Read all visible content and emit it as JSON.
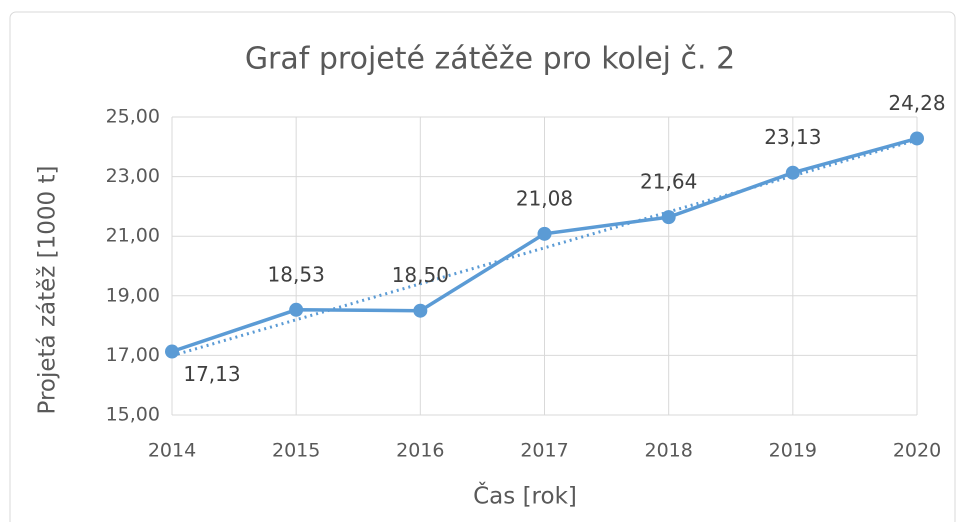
{
  "chart_data": {
    "type": "line",
    "title": "Graf projeté zátěže pro kolej č. 2",
    "x_label": "Čas [rok]",
    "y_label": "Projetá zátěž [1000 t]",
    "categories": [
      "2014",
      "2015",
      "2016",
      "2017",
      "2018",
      "2019",
      "2020"
    ],
    "series": [
      {
        "color": "#5b9bd5",
        "values": [
          17.13,
          18.53,
          18.5,
          21.08,
          21.64,
          23.13,
          24.28
        ],
        "value_labels": [
          "17,13",
          "18,53",
          "18,50",
          "21,08",
          "21,64",
          "23,13",
          "24,28"
        ]
      }
    ],
    "trendline": {
      "style": "dotted",
      "values": [
        16.99,
        24.23
      ]
    },
    "ylim": [
      15,
      25
    ],
    "yticks": [
      {
        "value": 15,
        "label": "15,00"
      },
      {
        "value": 17,
        "label": "17,00"
      },
      {
        "value": 19,
        "label": "19,00"
      },
      {
        "value": 21,
        "label": "21,00"
      },
      {
        "value": 23,
        "label": "23,00"
      },
      {
        "value": 25,
        "label": "25,00"
      }
    ],
    "grid": true
  }
}
